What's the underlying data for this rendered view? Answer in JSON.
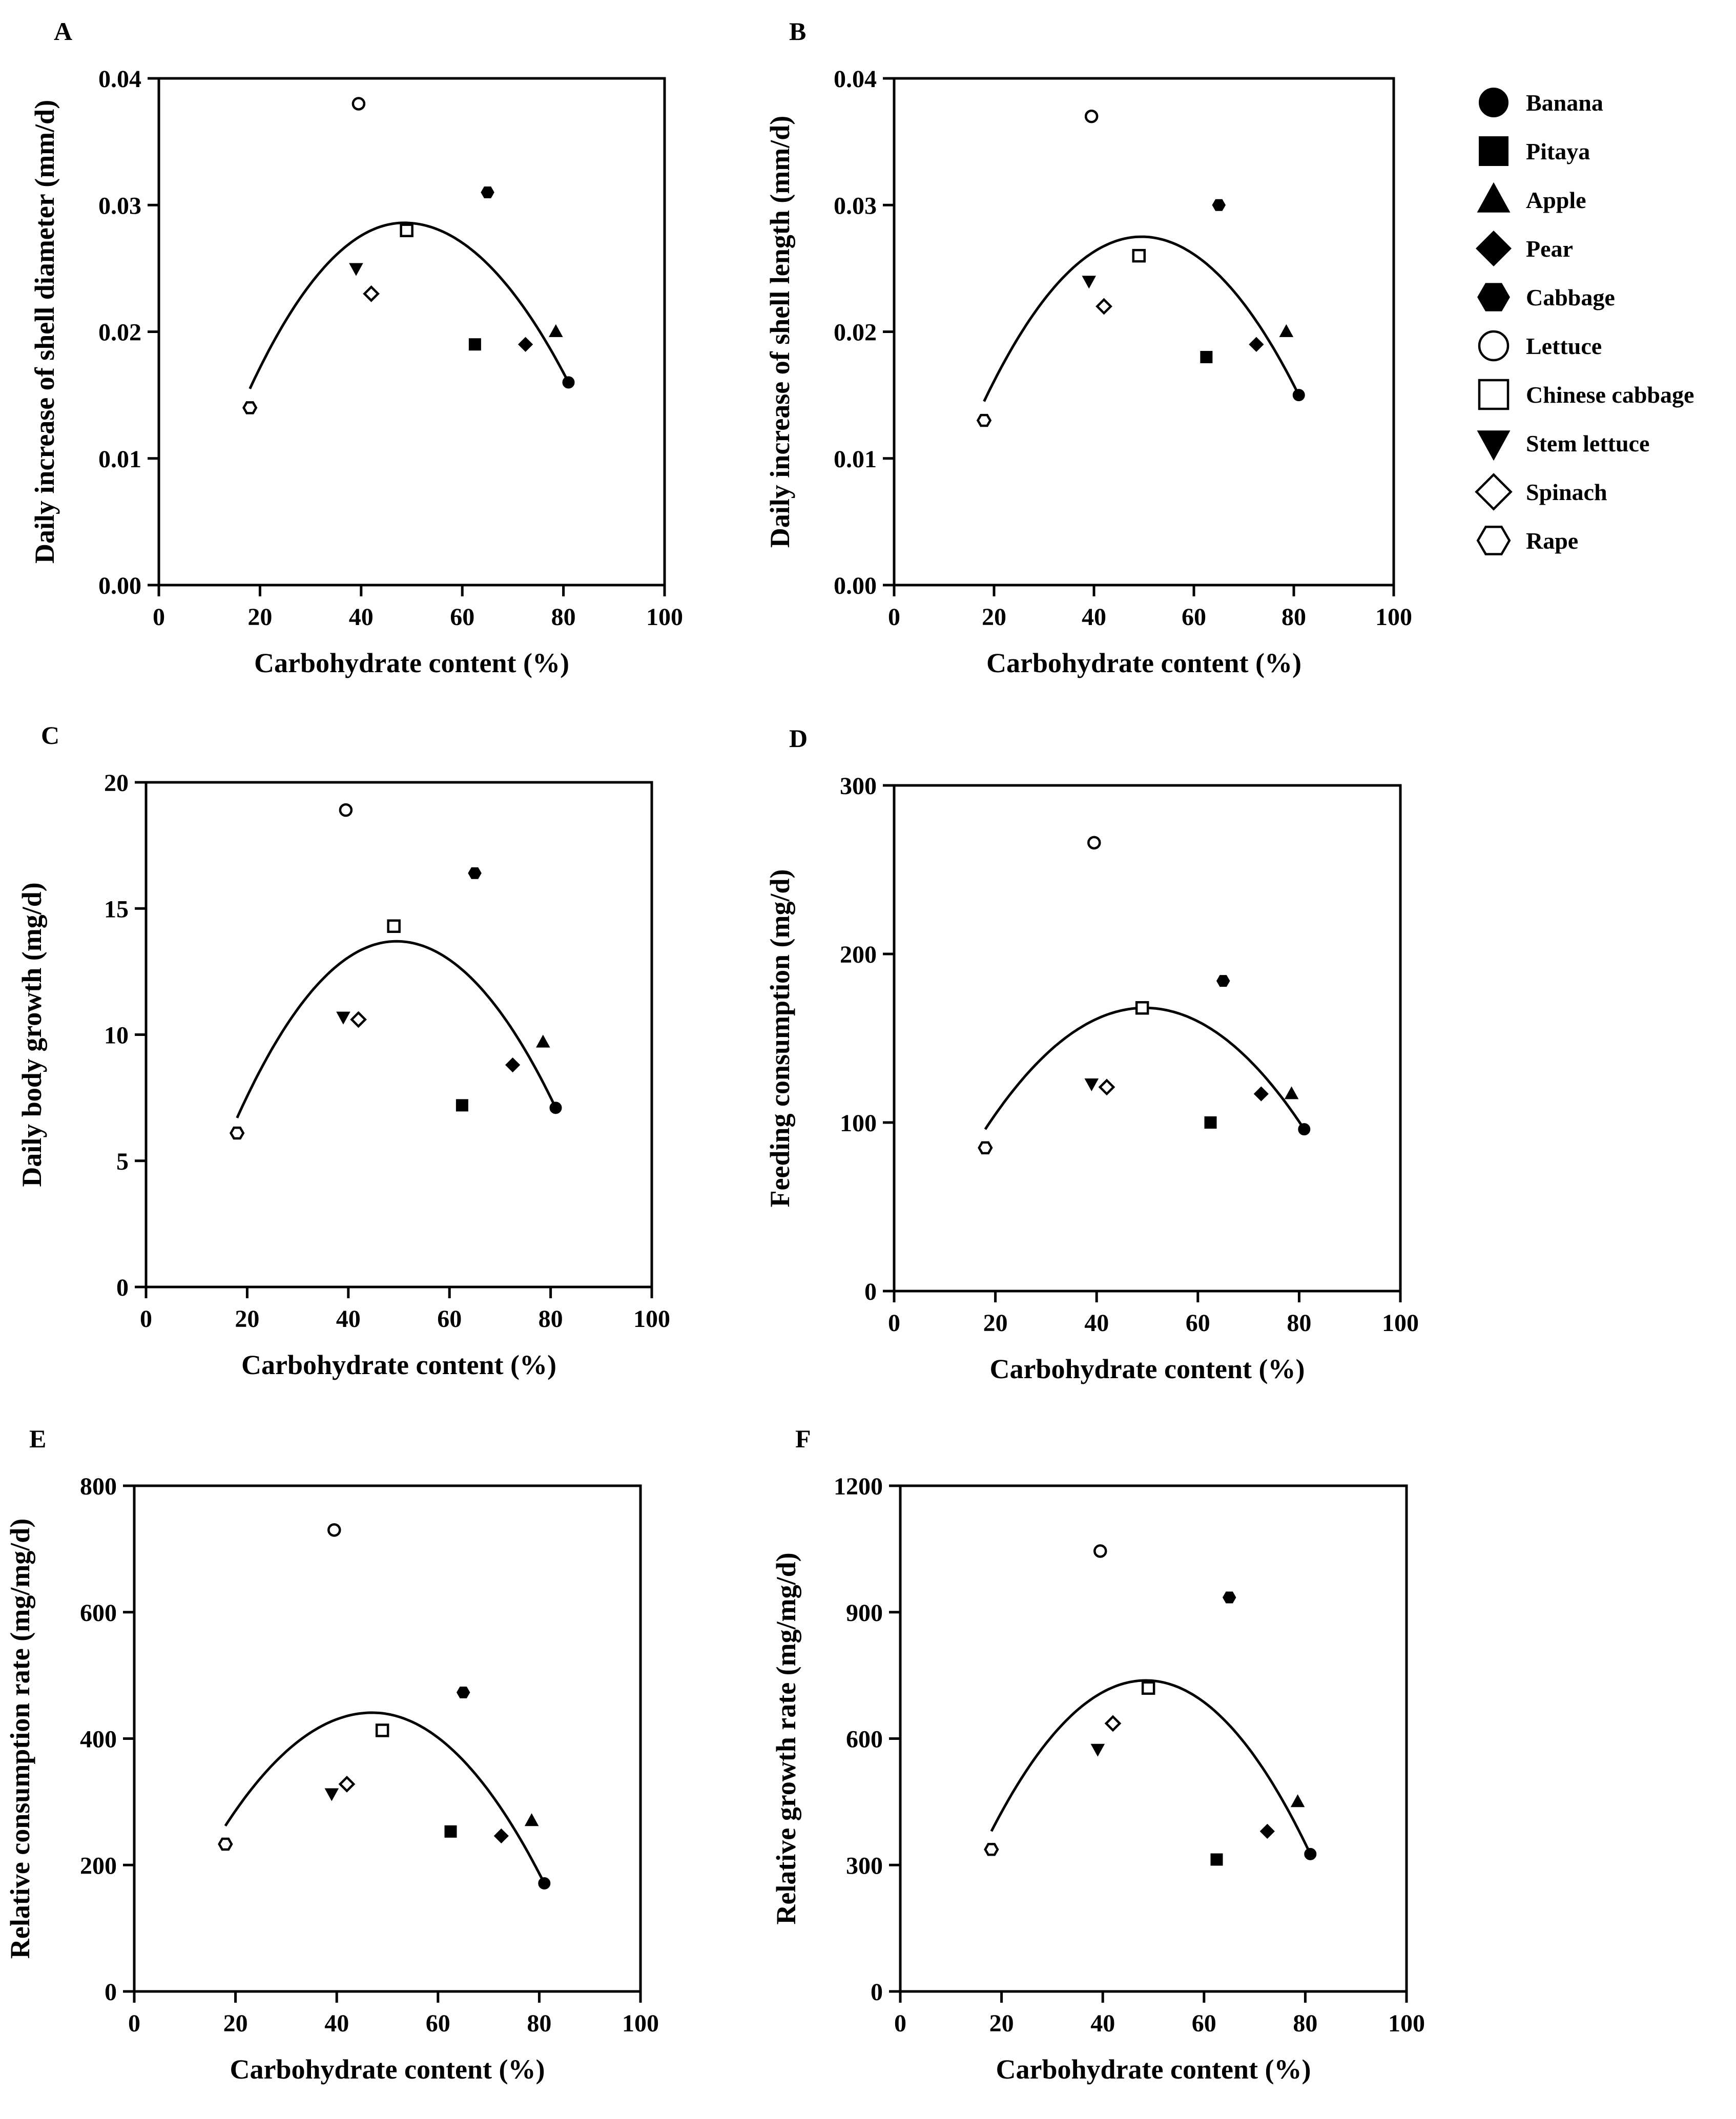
{
  "legend": {
    "items": [
      {
        "name": "Banana",
        "marker": "circle",
        "filled": true
      },
      {
        "name": "Pitaya",
        "marker": "square",
        "filled": true
      },
      {
        "name": "Apple",
        "marker": "triangle-up",
        "filled": true
      },
      {
        "name": "Pear",
        "marker": "diamond",
        "filled": true
      },
      {
        "name": "Cabbage",
        "marker": "hexagon",
        "filled": true
      },
      {
        "name": "Lettuce",
        "marker": "circle",
        "filled": false
      },
      {
        "name": "Chinese cabbage",
        "marker": "square",
        "filled": false
      },
      {
        "name": "Stem lettuce",
        "marker": "triangle-down",
        "filled": true
      },
      {
        "name": "Spinach",
        "marker": "diamond",
        "filled": false
      },
      {
        "name": "Rape",
        "marker": "hexagon",
        "filled": false
      }
    ]
  },
  "chart_data": [
    {
      "panel": "A",
      "type": "scatter",
      "xlabel": "Carbohydrate content (%)",
      "ylabel": "Daily increase of shell diameter (mm/d)",
      "xlim": [
        0,
        100
      ],
      "ylim": [
        0,
        0.04
      ],
      "xticks": [
        "0",
        "20",
        "40",
        "60",
        "80",
        "100"
      ],
      "yticks": [
        "0.00",
        "0.01",
        "0.02",
        "0.03",
        "0.04"
      ],
      "points": [
        {
          "series": "Rape",
          "x": 18,
          "y": 0.014
        },
        {
          "series": "Stem lettuce",
          "x": 39,
          "y": 0.025
        },
        {
          "series": "Lettuce",
          "x": 39.5,
          "y": 0.038
        },
        {
          "series": "Spinach",
          "x": 42,
          "y": 0.023
        },
        {
          "series": "Chinese cabbage",
          "x": 49,
          "y": 0.028
        },
        {
          "series": "Pitaya",
          "x": 62.5,
          "y": 0.019
        },
        {
          "series": "Cabbage",
          "x": 65,
          "y": 0.031
        },
        {
          "series": "Pear",
          "x": 72.5,
          "y": 0.019
        },
        {
          "series": "Apple",
          "x": 78.5,
          "y": 0.02
        },
        {
          "series": "Banana",
          "x": 81,
          "y": 0.016
        }
      ],
      "fit": {
        "x_range": [
          18,
          81
        ],
        "peak_x": 48.5,
        "peak_y": 0.0286,
        "y_at_start": 0.0155,
        "y_at_end": 0.016
      }
    },
    {
      "panel": "B",
      "type": "scatter",
      "xlabel": "Carbohydrate content (%)",
      "ylabel": "Daily increase of shell length (mm/d)",
      "xlim": [
        0,
        100
      ],
      "ylim": [
        0,
        0.04
      ],
      "xticks": [
        "0",
        "20",
        "40",
        "60",
        "80",
        "100"
      ],
      "yticks": [
        "0.00",
        "0.01",
        "0.02",
        "0.03",
        "0.04"
      ],
      "points": [
        {
          "series": "Rape",
          "x": 18,
          "y": 0.013
        },
        {
          "series": "Stem lettuce",
          "x": 39,
          "y": 0.024
        },
        {
          "series": "Lettuce",
          "x": 39.5,
          "y": 0.037
        },
        {
          "series": "Spinach",
          "x": 42,
          "y": 0.022
        },
        {
          "series": "Chinese cabbage",
          "x": 49,
          "y": 0.026
        },
        {
          "series": "Pitaya",
          "x": 62.5,
          "y": 0.018
        },
        {
          "series": "Cabbage",
          "x": 65,
          "y": 0.03
        },
        {
          "series": "Pear",
          "x": 72.5,
          "y": 0.019
        },
        {
          "series": "Apple",
          "x": 78.5,
          "y": 0.02
        },
        {
          "series": "Banana",
          "x": 81,
          "y": 0.015
        }
      ],
      "fit": {
        "x_range": [
          18,
          81
        ],
        "peak_x": 49.5,
        "peak_y": 0.0275,
        "y_at_start": 0.0145,
        "y_at_end": 0.015
      }
    },
    {
      "panel": "C",
      "type": "scatter",
      "xlabel": "Carbohydrate content (%)",
      "ylabel": "Daily body growth (mg/d)",
      "xlim": [
        0,
        100
      ],
      "ylim": [
        0,
        20
      ],
      "xticks": [
        "0",
        "20",
        "40",
        "60",
        "80",
        "100"
      ],
      "yticks": [
        "0",
        "5",
        "10",
        "15",
        "20"
      ],
      "points": [
        {
          "series": "Rape",
          "x": 18,
          "y": 6.1
        },
        {
          "series": "Stem lettuce",
          "x": 39,
          "y": 10.7
        },
        {
          "series": "Lettuce",
          "x": 39.5,
          "y": 18.9
        },
        {
          "series": "Spinach",
          "x": 42,
          "y": 10.6
        },
        {
          "series": "Chinese cabbage",
          "x": 49,
          "y": 14.3
        },
        {
          "series": "Pitaya",
          "x": 62.5,
          "y": 7.2
        },
        {
          "series": "Cabbage",
          "x": 65,
          "y": 16.4
        },
        {
          "series": "Pear",
          "x": 72.5,
          "y": 8.8
        },
        {
          "series": "Apple",
          "x": 78.5,
          "y": 9.7
        },
        {
          "series": "Banana",
          "x": 81,
          "y": 7.1
        }
      ],
      "fit": {
        "x_range": [
          18,
          81
        ],
        "peak_x": 49.5,
        "peak_y": 13.7,
        "y_at_start": 6.7,
        "y_at_end": 7.1
      }
    },
    {
      "panel": "D",
      "type": "scatter",
      "xlabel": "Carbohydrate content (%)",
      "ylabel": "Feeding consumption (mg/d)",
      "xlim": [
        0,
        100
      ],
      "ylim": [
        0,
        300
      ],
      "xticks": [
        "0",
        "20",
        "40",
        "60",
        "80",
        "100"
      ],
      "yticks": [
        "0",
        "100",
        "200",
        "300"
      ],
      "points": [
        {
          "series": "Rape",
          "x": 18,
          "y": 85
        },
        {
          "series": "Stem lettuce",
          "x": 39,
          "y": 123
        },
        {
          "series": "Lettuce",
          "x": 39.5,
          "y": 266
        },
        {
          "series": "Spinach",
          "x": 42,
          "y": 121
        },
        {
          "series": "Chinese cabbage",
          "x": 49,
          "y": 168
        },
        {
          "series": "Pitaya",
          "x": 62.5,
          "y": 100
        },
        {
          "series": "Cabbage",
          "x": 65,
          "y": 184
        },
        {
          "series": "Pear",
          "x": 72.5,
          "y": 117
        },
        {
          "series": "Apple",
          "x": 78.5,
          "y": 117
        },
        {
          "series": "Banana",
          "x": 81,
          "y": 96
        }
      ],
      "fit": {
        "x_range": [
          18,
          81
        ],
        "peak_x": 49.5,
        "peak_y": 168,
        "y_at_start": 96,
        "y_at_end": 96
      }
    },
    {
      "panel": "E",
      "type": "scatter",
      "xlabel": "Carbohydrate content (%)",
      "ylabel": "Relative consumption rate (mg/mg/d)",
      "xlim": [
        0,
        100
      ],
      "ylim": [
        0,
        800
      ],
      "xticks": [
        "0",
        "20",
        "40",
        "60",
        "80",
        "100"
      ],
      "yticks": [
        "0",
        "200",
        "400",
        "600",
        "800"
      ],
      "points": [
        {
          "series": "Rape",
          "x": 18,
          "y": 233
        },
        {
          "series": "Stem lettuce",
          "x": 39,
          "y": 313
        },
        {
          "series": "Lettuce",
          "x": 39.5,
          "y": 730
        },
        {
          "series": "Spinach",
          "x": 42,
          "y": 328
        },
        {
          "series": "Chinese cabbage",
          "x": 49,
          "y": 413
        },
        {
          "series": "Pitaya",
          "x": 62.5,
          "y": 253
        },
        {
          "series": "Cabbage",
          "x": 65,
          "y": 473
        },
        {
          "series": "Pear",
          "x": 72.5,
          "y": 246
        },
        {
          "series": "Apple",
          "x": 78.5,
          "y": 270
        },
        {
          "series": "Banana",
          "x": 81,
          "y": 171
        }
      ],
      "fit": {
        "x_range": [
          18,
          81
        ],
        "peak_x": 47,
        "peak_y": 441,
        "y_at_start": 262,
        "y_at_end": 171
      }
    },
    {
      "panel": "F",
      "type": "scatter",
      "xlabel": "Carbohydrate content (%)",
      "ylabel": "Relative growth rate (mg/mg/d)",
      "xlim": [
        0,
        100
      ],
      "ylim": [
        0,
        1200
      ],
      "xticks": [
        "0",
        "20",
        "40",
        "60",
        "80",
        "100"
      ],
      "yticks": [
        "0",
        "300",
        "600",
        "900",
        "1200"
      ],
      "points": [
        {
          "series": "Rape",
          "x": 18,
          "y": 337
        },
        {
          "series": "Stem lettuce",
          "x": 39,
          "y": 575
        },
        {
          "series": "Lettuce",
          "x": 39.5,
          "y": 1045
        },
        {
          "series": "Spinach",
          "x": 42,
          "y": 636
        },
        {
          "series": "Chinese cabbage",
          "x": 49,
          "y": 720
        },
        {
          "series": "Pitaya",
          "x": 62.5,
          "y": 313
        },
        {
          "series": "Cabbage",
          "x": 65,
          "y": 935
        },
        {
          "series": "Pear",
          "x": 72.5,
          "y": 380
        },
        {
          "series": "Apple",
          "x": 78.5,
          "y": 450
        },
        {
          "series": "Banana",
          "x": 81,
          "y": 326
        }
      ],
      "fit": {
        "x_range": [
          18,
          81
        ],
        "peak_x": 48.5,
        "peak_y": 738,
        "y_at_start": 380,
        "y_at_end": 326
      }
    }
  ]
}
